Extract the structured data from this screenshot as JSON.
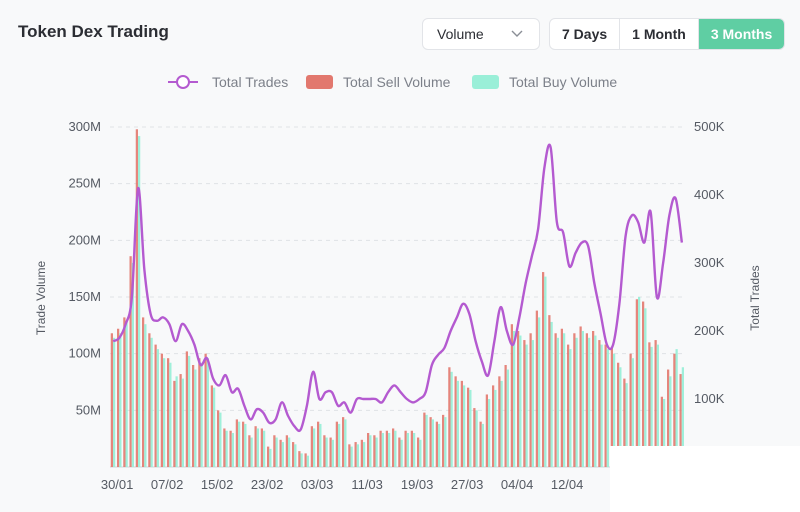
{
  "header": {
    "title": "Token Dex Trading",
    "metric_select": "Volume",
    "ranges": [
      "7 Days",
      "1 Month",
      "3 Months"
    ],
    "active_range": "3 Months"
  },
  "colors": {
    "trades_line": "#b45ad0",
    "sell": "#e2786e",
    "buy": "#9aefd8",
    "accent": "#5fcea3"
  },
  "icons": {
    "select": "chevron-down-icon"
  },
  "chart_data": {
    "type": "bar",
    "legend": [
      "Total Trades",
      "Total Sell Volume",
      "Total Buy Volume"
    ],
    "y_left": {
      "label": "Trade Volume",
      "ticks": [
        "50M",
        "100M",
        "150M",
        "200M",
        "250M",
        "300M"
      ],
      "range": [
        0,
        300000000
      ]
    },
    "y_right": {
      "label": "Total Trades",
      "ticks": [
        "100K",
        "200K",
        "300K",
        "400K",
        "500K"
      ],
      "range": [
        0,
        500000
      ]
    },
    "x_ticks": [
      "30/01",
      "07/02",
      "15/02",
      "23/02",
      "03/03",
      "11/03",
      "19/03",
      "27/03",
      "04/04",
      "12/04"
    ],
    "series": [
      {
        "name": "Total Sell Volume",
        "values": [
          118,
          122,
          132,
          186,
          298,
          132,
          118,
          108,
          100,
          96,
          76,
          82,
          102,
          90,
          96,
          100,
          72,
          50,
          34,
          32,
          42,
          40,
          28,
          36,
          34,
          18,
          28,
          24,
          28,
          22,
          14,
          12,
          36,
          40,
          28,
          26,
          40,
          44,
          20,
          22,
          24,
          30,
          28,
          32,
          32,
          34,
          26,
          32,
          32,
          26,
          48,
          44,
          40,
          46,
          88,
          80,
          76,
          70,
          52,
          40,
          64,
          72,
          80,
          90,
          126,
          120,
          112,
          118,
          138,
          172,
          134,
          118,
          122,
          108,
          118,
          124,
          118,
          120,
          112,
          108,
          106,
          92,
          78,
          100,
          148,
          146,
          110,
          112,
          62,
          86,
          100,
          82
        ]
      },
      {
        "name": "Total Buy Volume",
        "values": [
          114,
          118,
          128,
          180,
          292,
          126,
          114,
          104,
          96,
          92,
          80,
          78,
          98,
          86,
          92,
          96,
          70,
          48,
          32,
          30,
          40,
          38,
          26,
          34,
          32,
          16,
          26,
          22,
          26,
          20,
          12,
          10,
          34,
          38,
          26,
          24,
          38,
          42,
          18,
          20,
          22,
          28,
          26,
          30,
          30,
          32,
          24,
          30,
          30,
          24,
          46,
          42,
          38,
          44,
          84,
          76,
          72,
          68,
          50,
          38,
          60,
          68,
          76,
          86,
          120,
          116,
          108,
          112,
          132,
          168,
          128,
          114,
          118,
          104,
          114,
          120,
          114,
          116,
          108,
          104,
          100,
          88,
          74,
          96,
          150,
          140,
          106,
          108,
          60,
          80,
          104,
          88
        ]
      },
      {
        "name": "Total Trades",
        "values": [
          185,
          190,
          210,
          250,
          410,
          290,
          225,
          215,
          220,
          210,
          185,
          210,
          200,
          180,
          150,
          160,
          130,
          120,
          135,
          110,
          115,
          90,
          70,
          85,
          80,
          65,
          70,
          95,
          75,
          60,
          55,
          90,
          140,
          100,
          110,
          110,
          90,
          95,
          80,
          100,
          100,
          100,
          100,
          95,
          110,
          120,
          110,
          100,
          95,
          100,
          110,
          150,
          165,
          175,
          200,
          220,
          240,
          225,
          185,
          155,
          135,
          185,
          235,
          200,
          180,
          220,
          270,
          310,
          350,
          440,
          470,
          360,
          345,
          295,
          315,
          330,
          325,
          270,
          225,
          180,
          180,
          240,
          340,
          370,
          360,
          330,
          375,
          250,
          300,
          370,
          395,
          330
        ]
      }
    ]
  }
}
